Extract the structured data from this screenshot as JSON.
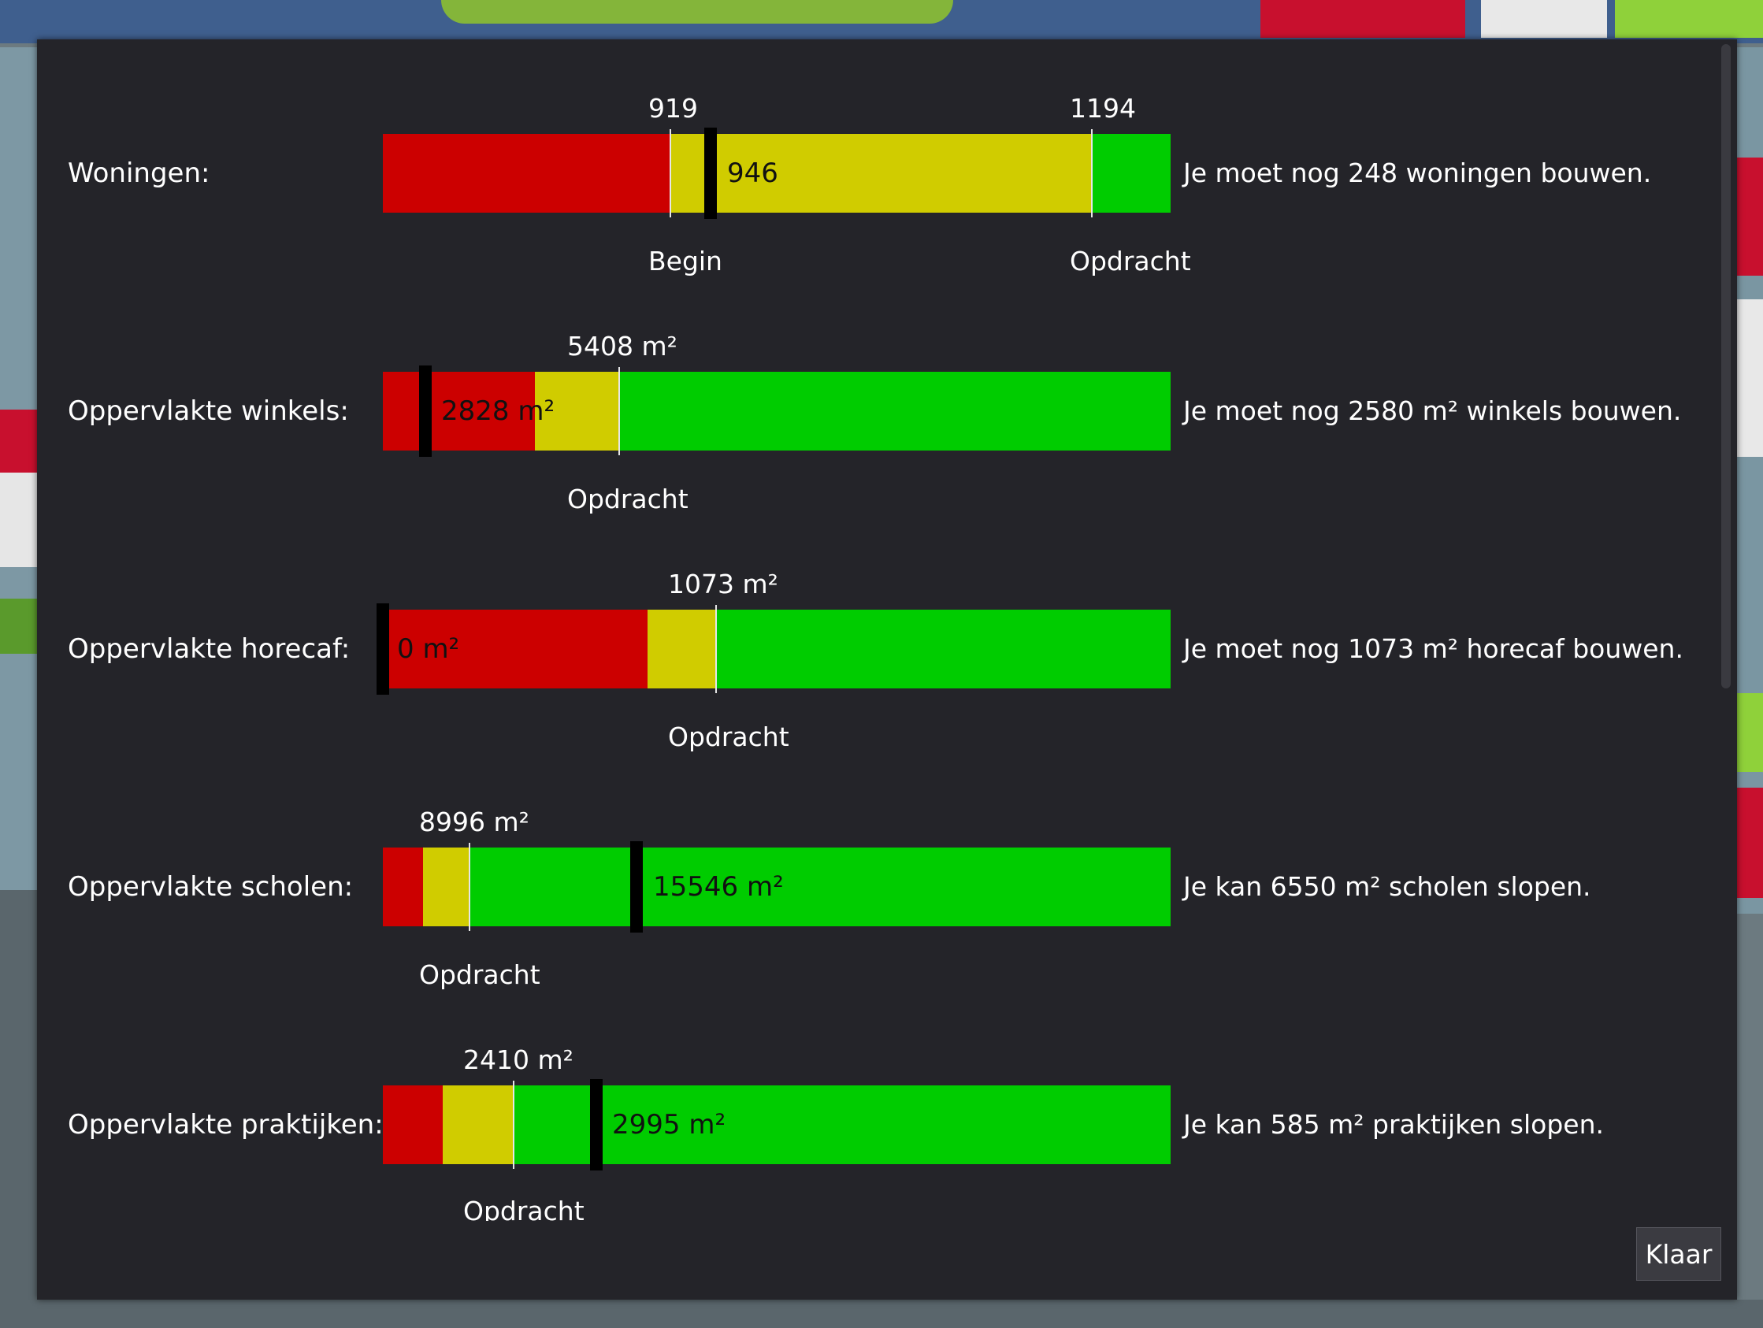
{
  "colors": {
    "red": "#cc0000",
    "yellow": "#d0cc00",
    "green": "#00cc00",
    "dialog_bg": "#242429"
  },
  "rows": [
    {
      "label": "Woningen:",
      "above": [
        "919",
        "1194"
      ],
      "below": [
        "Begin",
        "Opdracht"
      ],
      "current": "946",
      "message": "Je moet nog 248 woningen bouwen."
    },
    {
      "label": "Oppervlakte winkels:",
      "above": [
        "5408 m²"
      ],
      "below": [
        "Opdracht"
      ],
      "current": "2828 m²",
      "message": "Je moet nog 2580 m² winkels bouwen."
    },
    {
      "label": "Oppervlakte horecaf:",
      "above": [
        "1073 m²"
      ],
      "below": [
        "Opdracht"
      ],
      "current": "0 m²",
      "message": "Je moet nog 1073 m² horecaf bouwen."
    },
    {
      "label": "Oppervlakte scholen:",
      "above": [
        "8996 m²"
      ],
      "below": [
        "Opdracht"
      ],
      "current": "15546 m²",
      "message": "Je kan 6550 m² scholen slopen."
    },
    {
      "label": "Oppervlakte praktijken:",
      "above": [
        "2410 m²"
      ],
      "below": [
        "Opdracht"
      ],
      "current": "2995 m²",
      "message": "Je kan 585 m² praktijken slopen."
    }
  ],
  "button": {
    "klaar_label": "Klaar"
  }
}
